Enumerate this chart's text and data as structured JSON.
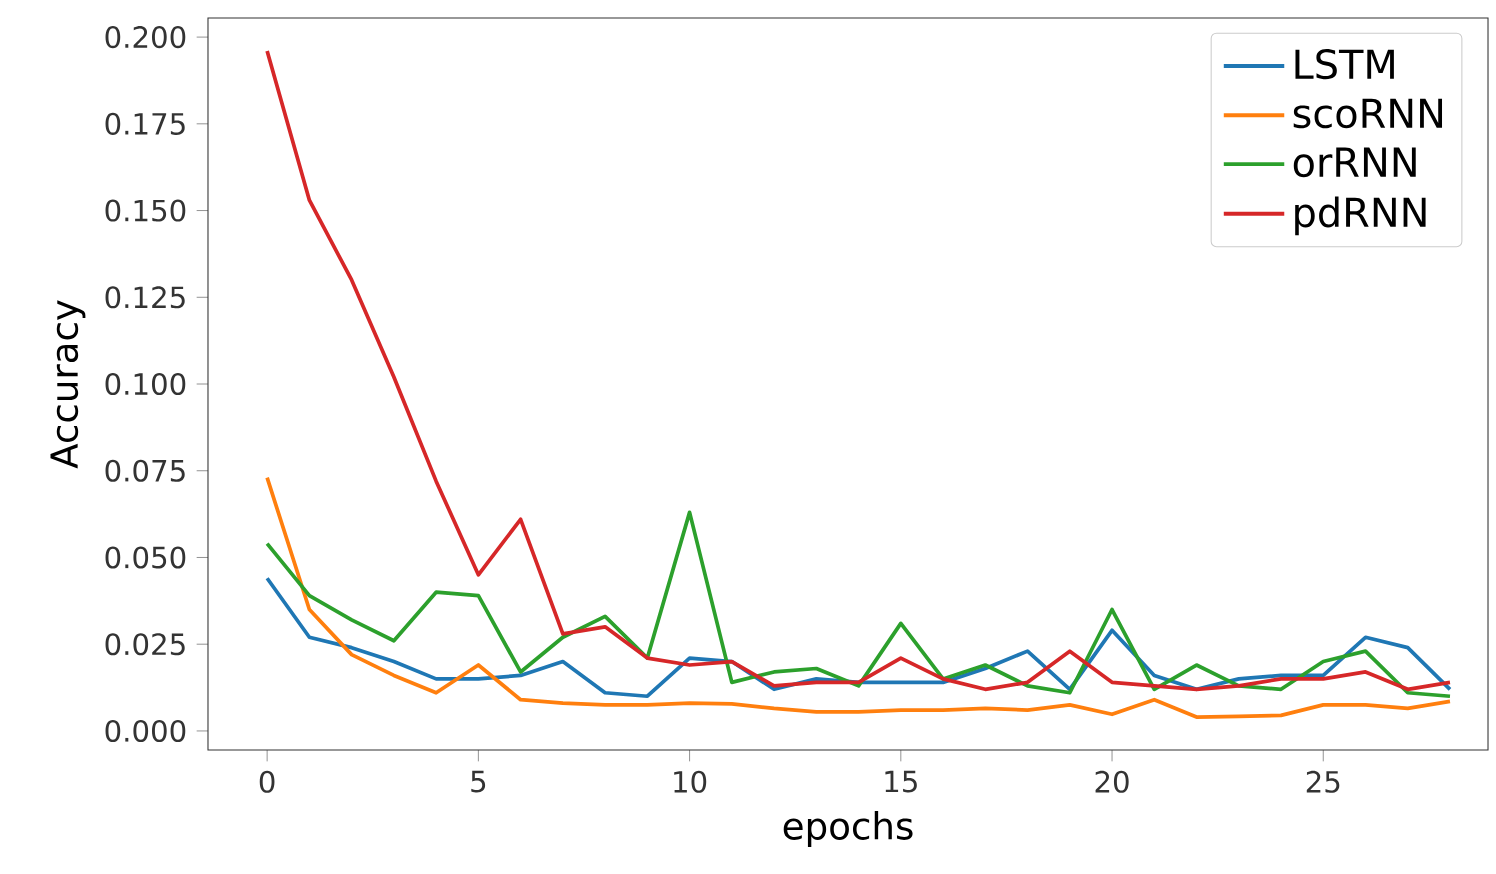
{
  "chart_data": {
    "type": "line",
    "xlabel": "epochs",
    "ylabel": "Accuracy",
    "x": [
      0,
      1,
      2,
      3,
      4,
      5,
      6,
      7,
      8,
      9,
      10,
      11,
      12,
      13,
      14,
      15,
      16,
      17,
      18,
      19,
      20,
      21,
      22,
      23,
      24,
      25,
      26,
      27,
      28
    ],
    "xlim": [
      -1.4,
      28.9
    ],
    "xticks": [
      0,
      5,
      10,
      15,
      20,
      25
    ],
    "ylim": [
      -0.0055,
      0.2055
    ],
    "yticks": [
      {
        "value": 0,
        "label": "0.000"
      },
      {
        "value": 0.025,
        "label": "0.025"
      },
      {
        "value": 0.05,
        "label": "0.050"
      },
      {
        "value": 0.075,
        "label": "0.075"
      },
      {
        "value": 0.1,
        "label": "0.100"
      },
      {
        "value": 0.125,
        "label": "0.125"
      },
      {
        "value": 0.15,
        "label": "0.150"
      },
      {
        "value": 0.175,
        "label": "0.175"
      },
      {
        "value": 0.2,
        "label": "0.200"
      }
    ],
    "legend": "top right",
    "grid": false,
    "series": [
      {
        "name": "LSTM",
        "color": "#1f77b4",
        "values": [
          0.044,
          0.027,
          0.024,
          0.02,
          0.015,
          0.015,
          0.016,
          0.02,
          0.011,
          0.01,
          0.021,
          0.02,
          0.012,
          0.015,
          0.014,
          0.014,
          0.014,
          0.018,
          0.023,
          0.012,
          0.029,
          0.016,
          0.012,
          0.015,
          0.016,
          0.016,
          0.027,
          0.024,
          0.012
        ]
      },
      {
        "name": "scoRNN",
        "color": "#ff7f0e",
        "values": [
          0.073,
          0.035,
          0.022,
          0.016,
          0.011,
          0.019,
          0.009,
          0.008,
          0.0075,
          0.0075,
          0.008,
          0.0078,
          0.0065,
          0.0055,
          0.0055,
          0.006,
          0.006,
          0.0065,
          0.006,
          0.0075,
          0.0048,
          0.009,
          0.004,
          0.0042,
          0.0045,
          0.0075,
          0.0075,
          0.0065,
          0.0085
        ]
      },
      {
        "name": "orRNN",
        "color": "#2ca02c",
        "values": [
          0.054,
          0.039,
          0.032,
          0.026,
          0.04,
          0.039,
          0.017,
          0.027,
          0.033,
          0.021,
          0.063,
          0.014,
          0.017,
          0.018,
          0.013,
          0.031,
          0.015,
          0.019,
          0.013,
          0.011,
          0.035,
          0.012,
          0.019,
          0.013,
          0.012,
          0.02,
          0.023,
          0.011,
          0.01
        ]
      },
      {
        "name": "pdRNN",
        "color": "#d62728",
        "values": [
          0.196,
          0.153,
          0.13,
          0.102,
          0.072,
          0.045,
          0.061,
          0.028,
          0.03,
          0.021,
          0.019,
          0.02,
          0.013,
          0.014,
          0.014,
          0.021,
          0.015,
          0.012,
          0.014,
          0.023,
          0.014,
          0.013,
          0.012,
          0.013,
          0.015,
          0.015,
          0.017,
          0.012,
          0.014
        ]
      }
    ]
  }
}
